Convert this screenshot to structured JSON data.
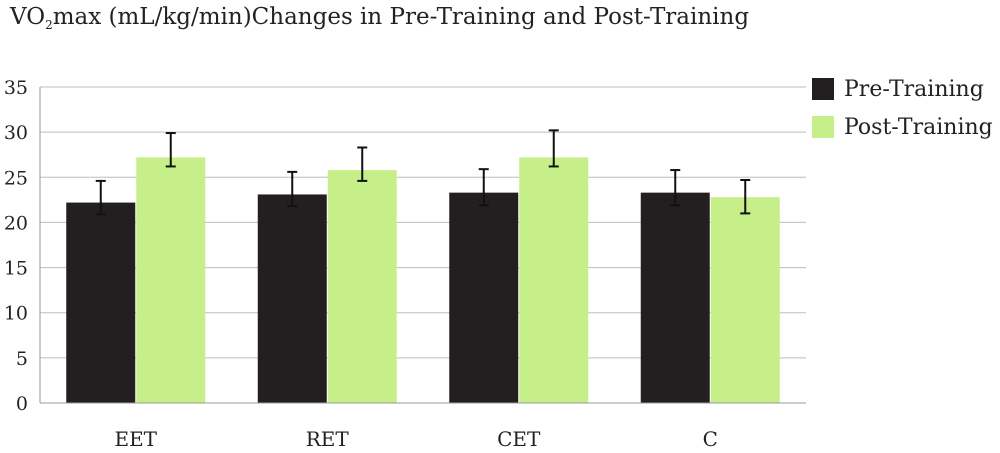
{
  "chart_data": {
    "type": "bar",
    "title_prefix": "VO",
    "title_subscript": "2",
    "title_rest": "max (mL/kg/min)Changes in Pre-Training and Post-Training",
    "xlabel": "",
    "ylabel": "",
    "categories": [
      "EET",
      "RET",
      "CET",
      "C"
    ],
    "ylim": [
      0,
      35
    ],
    "yticks": [
      "0",
      "5",
      "10",
      "15",
      "20",
      "25",
      "30",
      "35"
    ],
    "grid": true,
    "legend_position": "right",
    "series": [
      {
        "name": "Pre-Training",
        "color": "#231f20",
        "values": [
          22.2,
          23.1,
          23.3,
          23.3
        ],
        "error_upper": [
          24.6,
          25.6,
          25.9,
          25.8
        ],
        "error_lower": [
          20.9,
          21.8,
          21.9,
          21.9
        ]
      },
      {
        "name": "Post-Training",
        "color": "#c6ef8a",
        "values": [
          27.2,
          25.8,
          27.2,
          22.8
        ],
        "error_upper": [
          29.9,
          28.3,
          30.2,
          24.7
        ],
        "error_lower": [
          26.2,
          24.6,
          26.2,
          21.0
        ]
      }
    ]
  }
}
